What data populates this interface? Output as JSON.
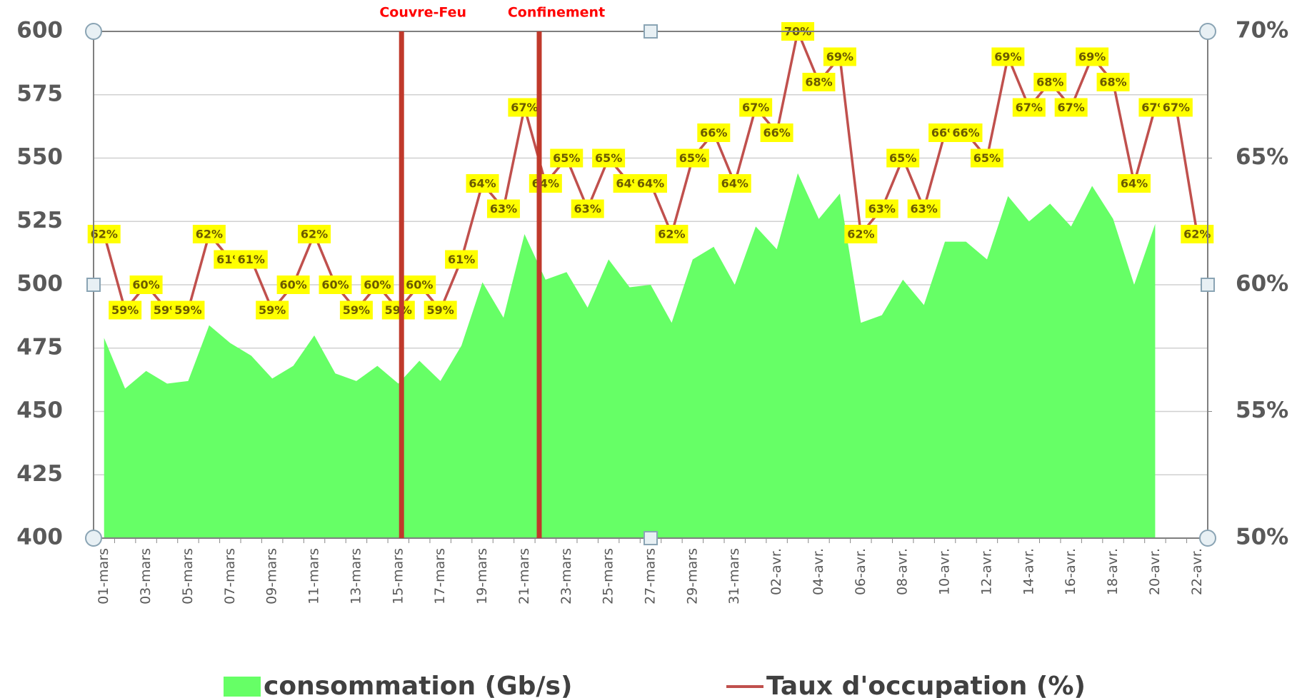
{
  "chart_data": {
    "type": "combo",
    "categories": [
      "01-mars",
      null,
      "03-mars",
      null,
      "05-mars",
      null,
      "07-mars",
      null,
      "09-mars",
      null,
      "11-mars",
      null,
      "13-mars",
      null,
      "15-mars",
      null,
      "17-mars",
      null,
      "19-mars",
      null,
      "21-mars",
      null,
      "23-mars",
      null,
      "25-mars",
      null,
      "27-mars",
      null,
      "29-mars",
      null,
      "31-mars",
      null,
      "02-avr.",
      null,
      "04-avr.",
      null,
      "06-avr.",
      null,
      "08-avr.",
      null,
      "10-avr.",
      null,
      "12-avr.",
      null,
      "14-avr.",
      null,
      "16-avr.",
      null,
      "18-avr.",
      null,
      "20-avr.",
      null,
      "22-avr."
    ],
    "series": [
      {
        "name": "consommation (Gb/s)",
        "type": "area",
        "color": "#66ff66",
        "values": [
          479,
          459,
          466,
          461,
          462,
          484,
          477,
          472,
          463,
          468,
          480,
          465,
          462,
          468,
          461,
          470,
          462,
          476,
          501,
          487,
          520,
          502,
          505,
          491,
          510,
          499,
          500,
          485,
          510,
          515,
          500,
          523,
          514,
          544,
          526,
          536,
          485,
          488,
          502,
          492,
          517,
          517,
          510,
          535,
          525,
          532,
          523,
          539,
          526,
          500,
          524,
          null,
          null
        ]
      },
      {
        "name": "Taux d'occupation (%)",
        "type": "line",
        "axis": "y2",
        "color": "#c0504d",
        "values": [
          62,
          59,
          60,
          59,
          59,
          62,
          61,
          61,
          59,
          60,
          62,
          60,
          59,
          60,
          59,
          60,
          59,
          61,
          64,
          63,
          67,
          64,
          65,
          63,
          65,
          64,
          64,
          62,
          65,
          66,
          64,
          67,
          66,
          70,
          68,
          69,
          62,
          63,
          65,
          63,
          66,
          66,
          65,
          69,
          67,
          68,
          67,
          69,
          68,
          64,
          67,
          67,
          62
        ],
        "value_labels": [
          "62%",
          "59%",
          "60%",
          "59%",
          "59%",
          "62%",
          "61%",
          "61%",
          "59%",
          "60%",
          "62%",
          "60%",
          "59%",
          "60%",
          "59%",
          "60%",
          "59%",
          "61%",
          "64%",
          "63%",
          "67%",
          "64%",
          "65%",
          "63%",
          "65%",
          "64%",
          "64%",
          "62%",
          "65%",
          "66%",
          "64%",
          "67%",
          "66%",
          "70%",
          "68%",
          "69%",
          "62%",
          "63%",
          "65%",
          "63%",
          "66%",
          "66%",
          "65%",
          "69%",
          "67%",
          "68%",
          "67%",
          "69%",
          "68%",
          "64%",
          "67%",
          "67%",
          "62%"
        ]
      }
    ],
    "ylim": [
      400,
      600
    ],
    "yticks": [
      400,
      425,
      450,
      475,
      500,
      525,
      550,
      575,
      600
    ],
    "y2lim": [
      50,
      70
    ],
    "y2ticks": [
      {
        "value": 50,
        "label": "50%"
      },
      {
        "value": 55,
        "label": "55%"
      },
      {
        "value": 60,
        "label": "60%"
      },
      {
        "value": 65,
        "label": "65%"
      },
      {
        "value": 70,
        "label": "70%"
      }
    ],
    "grid": true,
    "legend": "bottom",
    "annotations": [
      {
        "text": "Couvre-Feu",
        "x": 14.15,
        "color": "#c0392b"
      },
      {
        "text": "Confinement",
        "x": 20.7,
        "color": "#c0392b"
      }
    ]
  }
}
